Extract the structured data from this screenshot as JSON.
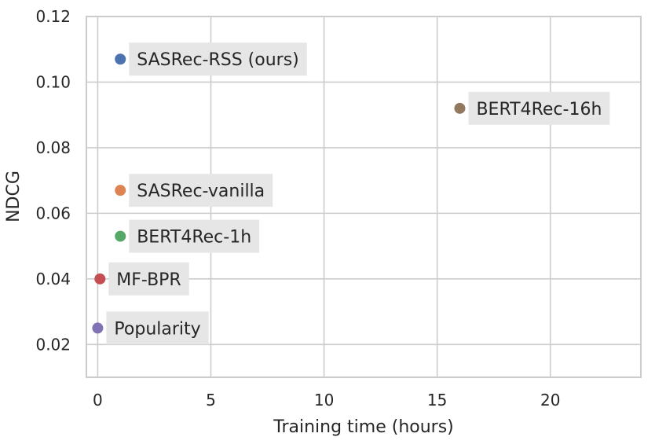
{
  "chart_data": {
    "type": "scatter",
    "title": "",
    "xlabel": "Training time (hours)",
    "ylabel": "NDCG",
    "xlim": [
      -0.5,
      24
    ],
    "ylim": [
      0.01,
      0.12
    ],
    "xticks": [
      0,
      5,
      10,
      15,
      20
    ],
    "yticks": [
      0.02,
      0.04,
      0.06,
      0.08,
      0.1,
      0.12
    ],
    "xtick_labels": [
      "0",
      "5",
      "10",
      "15",
      "20"
    ],
    "ytick_labels": [
      "0.02",
      "0.04",
      "0.06",
      "0.08",
      "0.10",
      "0.12"
    ],
    "grid": true,
    "points": [
      {
        "label": "SASRec-RSS (ours)",
        "x": 1.0,
        "y": 0.107,
        "color": "#4c72b0"
      },
      {
        "label": "BERT4Rec-16h",
        "x": 16.0,
        "y": 0.092,
        "color": "#937860"
      },
      {
        "label": "SASRec-vanilla",
        "x": 1.0,
        "y": 0.067,
        "color": "#dd8452"
      },
      {
        "label": "BERT4Rec-1h",
        "x": 1.0,
        "y": 0.053,
        "color": "#55a868"
      },
      {
        "label": "MF-BPR",
        "x": 0.1,
        "y": 0.04,
        "color": "#c44e52"
      },
      {
        "label": "Popularity",
        "x": 0.0,
        "y": 0.025,
        "color": "#8172b3"
      }
    ]
  }
}
